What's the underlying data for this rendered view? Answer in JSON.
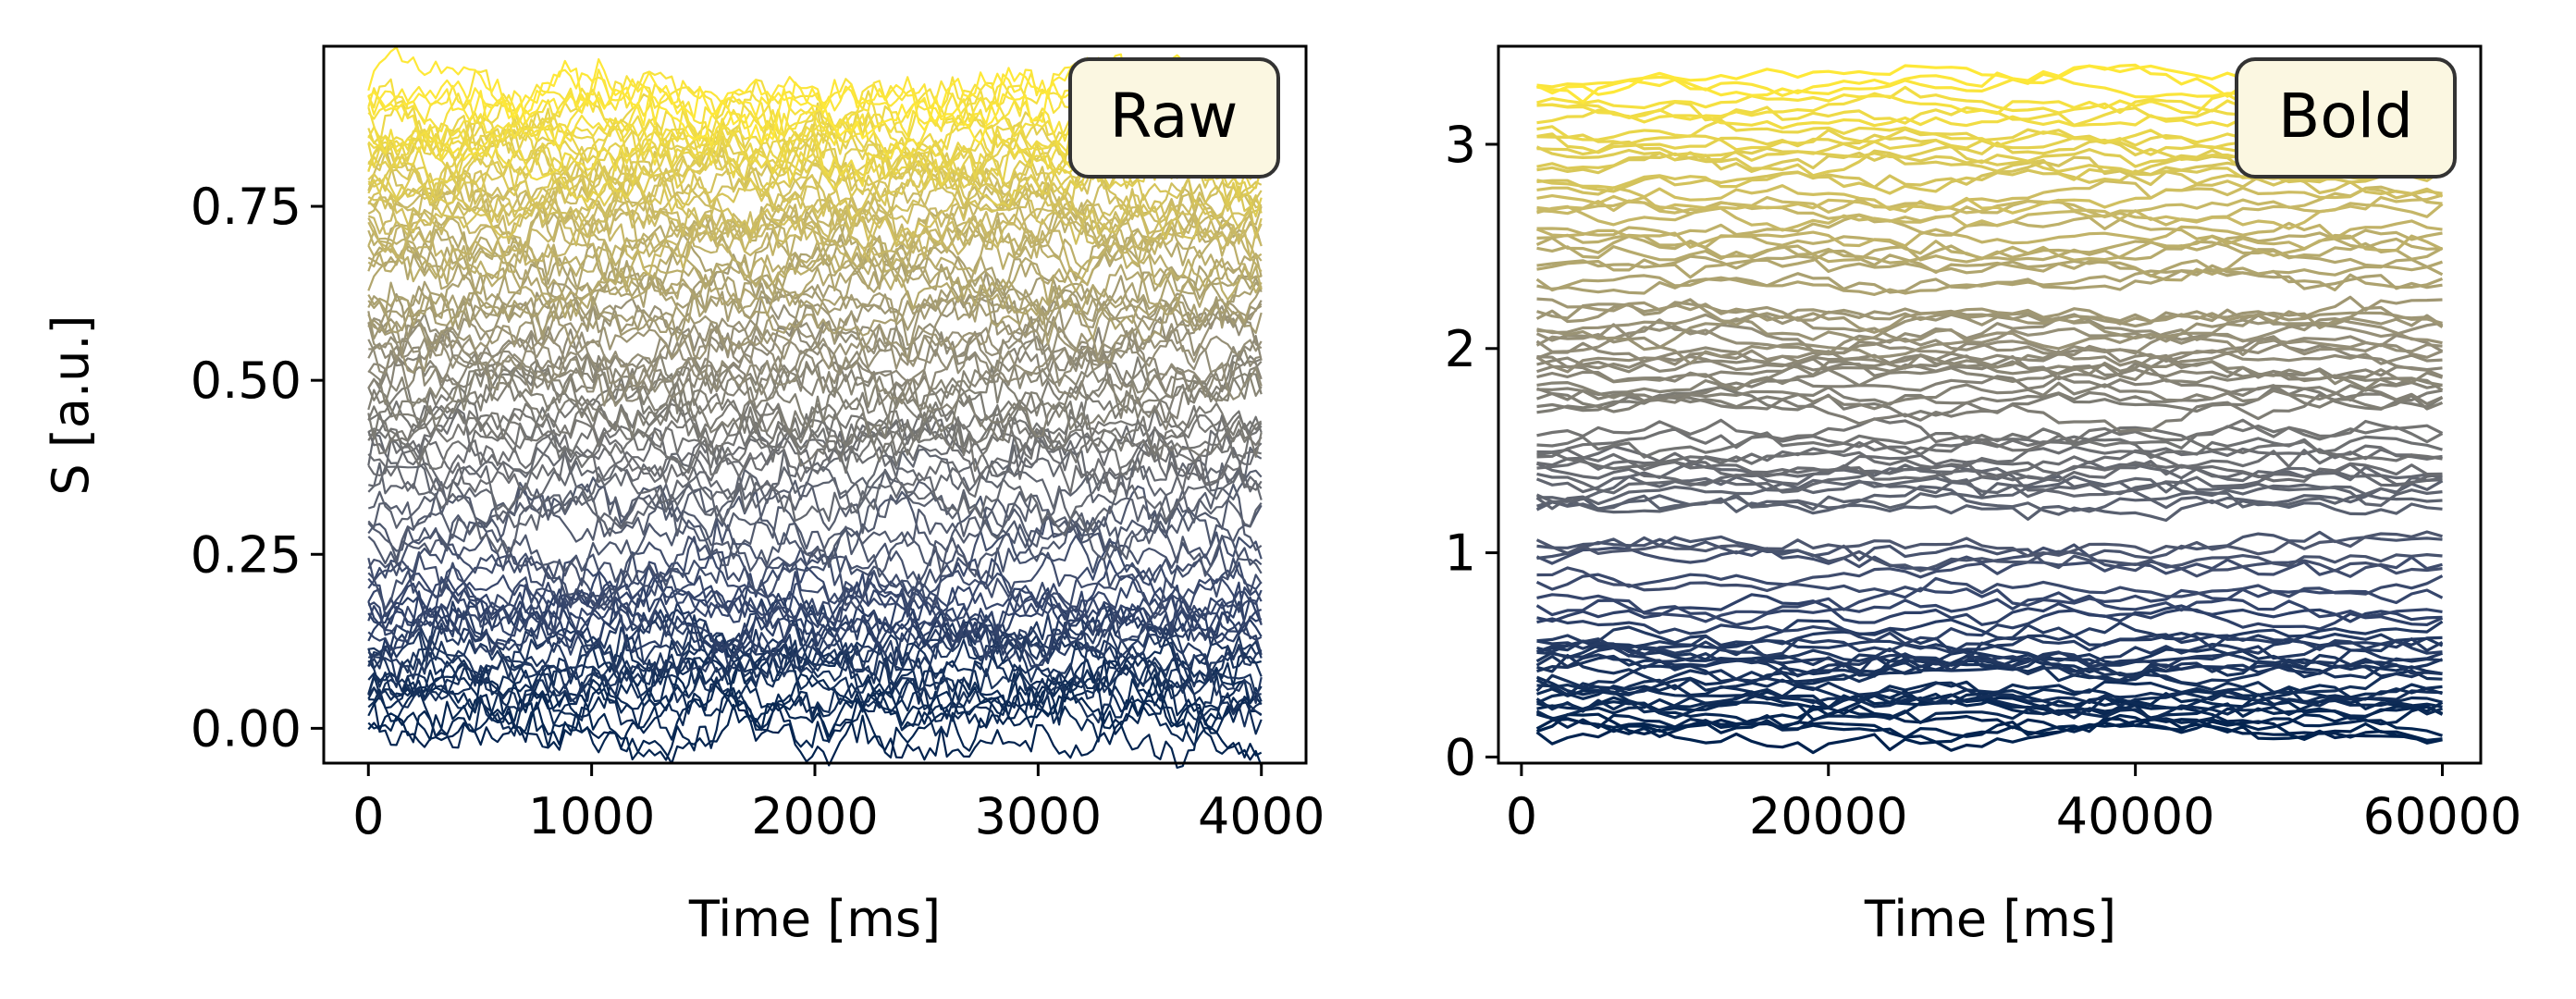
{
  "chart_data": [
    {
      "type": "line",
      "panel": "left",
      "xlabel": "Time [ms]",
      "ylabel": "S [a.u.]",
      "annotation": "Raw",
      "annotation_placement": "top-right",
      "xlim": [
        -200,
        4200
      ],
      "ylim": [
        -0.05,
        0.98
      ],
      "x_ticks": [
        0,
        1000,
        2000,
        3000,
        4000
      ],
      "x_tick_labels": [
        "0",
        "1000",
        "2000",
        "3000",
        "4000"
      ],
      "y_ticks": [
        0.0,
        0.25,
        0.5,
        0.75
      ],
      "y_tick_labels": [
        "0.00",
        "0.25",
        "0.50",
        "0.75"
      ],
      "grid": false,
      "colormap": "cividis",
      "colormap_stops": [
        "#00224e",
        "#35456c",
        "#666970",
        "#948e77",
        "#c8b866",
        "#fee838"
      ],
      "x_range": [
        0,
        4000
      ],
      "n_points": 160,
      "series_count": 100,
      "series_means_summary": {
        "band_0.00_0.20": 25,
        "band_0.20_0.35": 10,
        "band_0.35_0.50": 15,
        "band_0.50_0.70": 20,
        "band_0.70_0.92": 30
      },
      "noise_amplitude": 0.04
    },
    {
      "type": "line",
      "panel": "right",
      "xlabel": "Time [ms]",
      "ylabel": "",
      "annotation": "Bold",
      "annotation_placement": "top-right",
      "xlim": [
        -1500,
        62500
      ],
      "ylim": [
        -0.03,
        3.48
      ],
      "x_ticks": [
        0,
        20000,
        40000,
        60000
      ],
      "x_tick_labels": [
        "0",
        "20000",
        "40000",
        "60000"
      ],
      "y_ticks": [
        0,
        1,
        2,
        3
      ],
      "y_tick_labels": [
        "0",
        "1",
        "2",
        "3"
      ],
      "grid": false,
      "colormap": "cividis",
      "colormap_stops": [
        "#00224e",
        "#35456c",
        "#666970",
        "#948e77",
        "#c8b866",
        "#fee838"
      ],
      "x_range": [
        1000,
        60000
      ],
      "n_points": 60,
      "series_count": 100,
      "series_means_summary": {
        "band_0.10_0.60": 25,
        "band_0.60_1.10": 10,
        "band_1.20_1.60": 15,
        "band_1.70_2.20": 20,
        "band_2.30_3.35": 30
      },
      "noise_amplitude": 0.06
    }
  ]
}
